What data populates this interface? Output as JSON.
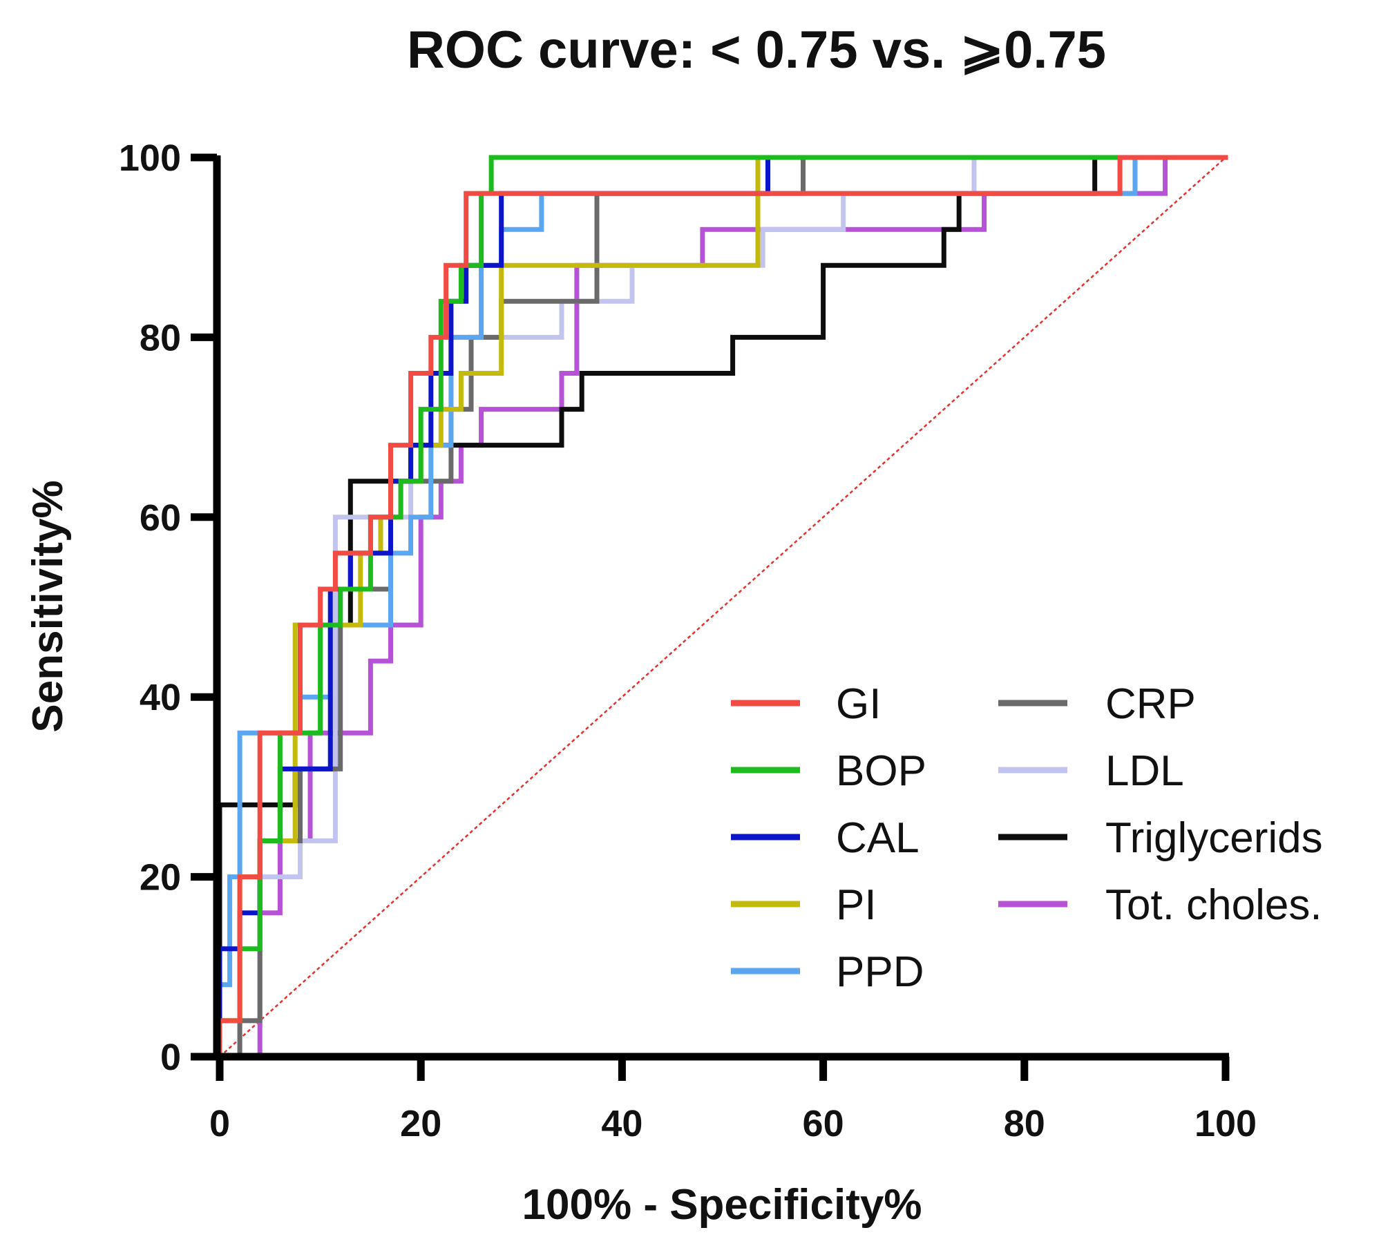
{
  "chart_data": {
    "type": "line",
    "title": "ROC curve: < 0.75 vs. ⩾0.75",
    "xlabel": "100% - Specificity%",
    "ylabel": "Sensitivity%",
    "xlim": [
      0,
      100
    ],
    "ylim": [
      0,
      100
    ],
    "xticks": [
      "0",
      "20",
      "40",
      "60",
      "80",
      "100"
    ],
    "yticks": [
      "0",
      "20",
      "40",
      "60",
      "80",
      "100"
    ],
    "legend_position": "bottom-right",
    "reference_line": {
      "name": "chance",
      "color": "#e8302c",
      "style": "dotted",
      "x": [
        0,
        100
      ],
      "y": [
        0,
        100
      ]
    },
    "series": [
      {
        "name": "GI",
        "color": "#f24b44",
        "x": [
          0,
          0,
          2,
          2,
          4,
          4,
          8,
          8,
          10,
          10,
          11.5,
          11.5,
          15,
          15,
          17,
          17,
          19,
          19,
          21,
          21,
          22.5,
          22.5,
          24.5,
          24.5,
          88,
          88,
          89.5,
          89.5,
          100
        ],
        "y": [
          0,
          4,
          4,
          20,
          20,
          36,
          36,
          48,
          48,
          52,
          52,
          56,
          56,
          60,
          60,
          68,
          68,
          76,
          76,
          80,
          80,
          88,
          88,
          96,
          96,
          96,
          96,
          100,
          100
        ]
      },
      {
        "name": "BOP",
        "color": "#1dbb1d",
        "x": [
          0,
          0,
          2,
          2,
          4,
          4,
          6,
          6,
          8,
          8,
          10,
          10,
          12,
          12,
          15,
          15,
          18,
          18,
          20,
          20,
          22,
          22,
          24,
          24,
          26,
          26,
          27,
          27,
          100
        ],
        "y": [
          0,
          4,
          4,
          12,
          12,
          24,
          24,
          36,
          36,
          36,
          36,
          48,
          48,
          52,
          52,
          60,
          60,
          64,
          64,
          72,
          72,
          84,
          84,
          88,
          88,
          96,
          96,
          100,
          100
        ]
      },
      {
        "name": "CAL",
        "color": "#0c16c8",
        "x": [
          0,
          0,
          2,
          2,
          4,
          4,
          6,
          6,
          8,
          8,
          11,
          11,
          13,
          13,
          17,
          17,
          19,
          19,
          21,
          21,
          23,
          23,
          24.5,
          24.5,
          28,
          28,
          54.5,
          54.5,
          100
        ],
        "y": [
          0,
          12,
          12,
          16,
          16,
          24,
          24,
          32,
          32,
          32,
          32,
          52,
          52,
          56,
          56,
          64,
          64,
          68,
          68,
          76,
          76,
          84,
          84,
          88,
          88,
          96,
          96,
          100,
          100
        ]
      },
      {
        "name": "PI",
        "color": "#c4ba0e",
        "x": [
          0,
          0,
          2,
          2,
          4,
          4,
          7.5,
          7.5,
          10,
          10,
          14,
          14,
          16,
          16,
          18,
          18,
          20,
          20,
          22,
          22,
          24,
          24,
          26,
          26,
          28,
          28,
          53.5,
          53.5,
          100
        ],
        "y": [
          0,
          4,
          4,
          20,
          20,
          24,
          24,
          48,
          48,
          48,
          48,
          56,
          56,
          60,
          60,
          64,
          64,
          68,
          68,
          72,
          72,
          76,
          76,
          76,
          76,
          88,
          88,
          100,
          100
        ]
      },
      {
        "name": "PPD",
        "color": "#5aa6f0",
        "x": [
          0,
          0,
          1,
          1,
          2,
          2,
          4,
          4,
          6,
          6,
          8,
          8,
          11,
          11,
          15,
          15,
          17,
          17,
          19,
          19,
          21,
          21,
          23,
          23,
          26,
          26,
          28,
          28,
          29,
          29,
          32,
          32,
          90,
          90,
          91,
          91,
          100
        ],
        "y": [
          0,
          8,
          8,
          20,
          20,
          36,
          36,
          36,
          36,
          36,
          36,
          40,
          40,
          48,
          48,
          48,
          48,
          56,
          56,
          60,
          60,
          68,
          68,
          80,
          80,
          88,
          88,
          92,
          92,
          92,
          92,
          96,
          96,
          96,
          96,
          100,
          100
        ]
      },
      {
        "name": "CRP",
        "color": "#6a6a6a",
        "x": [
          0,
          0,
          2,
          2,
          4,
          4,
          8,
          8,
          12,
          12,
          15,
          15,
          17,
          17,
          20,
          20,
          23,
          23,
          25,
          25,
          27,
          27,
          28,
          28,
          37.5,
          37.5,
          58,
          58,
          100
        ],
        "y": [
          0,
          0,
          0,
          4,
          4,
          24,
          24,
          32,
          32,
          52,
          52,
          52,
          52,
          64,
          64,
          64,
          64,
          72,
          72,
          80,
          80,
          80,
          80,
          84,
          84,
          96,
          96,
          100,
          100
        ]
      },
      {
        "name": "LDL",
        "color": "#c3c3f0",
        "x": [
          0,
          0,
          2,
          2,
          4,
          4,
          8,
          8,
          11.5,
          11.5,
          15,
          15,
          19,
          19,
          21,
          21,
          23,
          23,
          34,
          34,
          36,
          36,
          41,
          41,
          48,
          48,
          54,
          54,
          62,
          62,
          75,
          75,
          100
        ],
        "y": [
          0,
          0,
          0,
          4,
          4,
          20,
          20,
          24,
          24,
          60,
          60,
          60,
          60,
          64,
          64,
          72,
          72,
          80,
          80,
          84,
          84,
          84,
          84,
          88,
          88,
          88,
          88,
          92,
          92,
          96,
          96,
          100,
          100
        ]
      },
      {
        "name": "Triglycerids",
        "color": "#0d0d0d",
        "x": [
          0,
          0,
          7.5,
          7.5,
          11.5,
          11.5,
          13,
          13,
          19,
          19,
          34,
          34,
          36,
          36,
          51,
          51,
          60,
          60,
          72,
          72,
          73.5,
          73.5,
          87,
          87,
          100
        ],
        "y": [
          0,
          28,
          28,
          32,
          32,
          48,
          48,
          64,
          64,
          68,
          68,
          72,
          72,
          76,
          76,
          80,
          80,
          88,
          88,
          92,
          92,
          96,
          96,
          100,
          100
        ]
      },
      {
        "name": "Tot. choles.",
        "color": "#b552d6",
        "x": [
          0,
          0,
          4,
          4,
          6,
          6,
          9,
          9,
          15,
          15,
          17,
          17,
          20,
          20,
          22,
          22,
          24,
          24,
          26,
          26,
          34,
          34,
          35.5,
          35.5,
          48,
          48,
          76,
          76,
          90,
          90,
          94,
          94
        ],
        "y": [
          0,
          0,
          0,
          16,
          16,
          24,
          24,
          36,
          36,
          44,
          44,
          48,
          48,
          60,
          60,
          64,
          64,
          68,
          68,
          72,
          72,
          76,
          76,
          88,
          88,
          92,
          92,
          96,
          96,
          96,
          96,
          100
        ]
      }
    ]
  }
}
